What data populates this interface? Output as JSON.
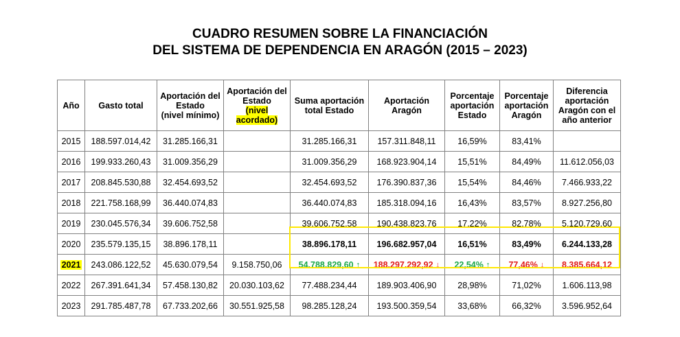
{
  "title": {
    "line1": "CUADRO RESUMEN SOBRE LA FINANCIACIÓN",
    "line2": "DEL SISTEMA DE DEPENDENCIA EN ARAGÓN (2015 – 2023)"
  },
  "headers": {
    "anio": "Año",
    "gasto": "Gasto total",
    "aport_min_1": "Aportación del Estado",
    "aport_min_2": "(nivel mínimo)",
    "aport_acord_1": "Aportación del Estado",
    "aport_acord_2": "(nivel acordado)",
    "suma": "Suma aportación total Estado",
    "aragon": "Aportación Aragón",
    "pct_estado": "Porcentaje aportación Estado",
    "pct_aragon": "Porcentaje aportación Aragón",
    "diferencia": "Diferencia aportación Aragón con el año anterior"
  },
  "rows": [
    {
      "year": "2015",
      "gasto": "188.597.014,42",
      "minimo": "31.285.166,31",
      "acordado": "",
      "suma": "31.285.166,31",
      "aragon": "157.311.848,11",
      "pct_estado": "16,59%",
      "pct_aragon": "83,41%",
      "diferencia": ""
    },
    {
      "year": "2016",
      "gasto": "199.933.260,43",
      "minimo": "31.009.356,29",
      "acordado": "",
      "suma": "31.009.356,29",
      "aragon": "168.923.904,14",
      "pct_estado": "15,51%",
      "pct_aragon": "84,49%",
      "diferencia": "11.612.056,03"
    },
    {
      "year": "2017",
      "gasto": "208.845.530,88",
      "minimo": "32.454.693,52",
      "acordado": "",
      "suma": "32.454.693,52",
      "aragon": "176.390.837,36",
      "pct_estado": "15,54%",
      "pct_aragon": "84,46%",
      "diferencia": "7.466.933,22"
    },
    {
      "year": "2018",
      "gasto": "221.758.168,99",
      "minimo": "36.440.074,83",
      "acordado": "",
      "suma": "36.440.074,83",
      "aragon": "185.318.094,16",
      "pct_estado": "16,43%",
      "pct_aragon": "83,57%",
      "diferencia": "8.927.256,80"
    },
    {
      "year": "2019",
      "gasto": "230.045.576,34",
      "minimo": "39.606.752,58",
      "acordado": "",
      "suma": "39.606.752,58",
      "aragon": "190.438.823,76",
      "pct_estado": "17,22%",
      "pct_aragon": "82,78%",
      "diferencia": "5.120.729,60"
    },
    {
      "year": "2020",
      "gasto": "235.579.135,15",
      "minimo": "38.896.178,11",
      "acordado": "",
      "suma": "38.896.178,11",
      "aragon": "196.682.957,04",
      "pct_estado": "16,51%",
      "pct_aragon": "83,49%",
      "diferencia": "6.244.133,28"
    },
    {
      "year": "2021",
      "gasto": "243.086.122,52",
      "minimo": "45.630.079,54",
      "acordado": "9.158.750,06",
      "suma": "54.788.829,60 ↑",
      "aragon": "188.297.292,92 ↓",
      "pct_estado": "22,54% ↑",
      "pct_aragon": "77,46% ↓",
      "diferencia": "8.385.664,12"
    },
    {
      "year": "2022",
      "gasto": "267.391.641,34",
      "minimo": "57.458.130,82",
      "acordado": "20.030.103,62",
      "suma": "77.488.234,44",
      "aragon": "189.903.406,90",
      "pct_estado": "28,98%",
      "pct_aragon": "71,02%",
      "diferencia": "1.606.113,98"
    },
    {
      "year": "2023",
      "gasto": "291.785.487,78",
      "minimo": "67.733.202,66",
      "acordado": "30.551.925,58",
      "suma": "98.285.128,24",
      "aragon": "193.500.359,54",
      "pct_estado": "33,68%",
      "pct_aragon": "66,32%",
      "diferencia": "3.596.952,64"
    }
  ],
  "colors": {
    "highlight_yellow": "#ffff00",
    "box_yellow": "#ffe800",
    "increase_green": "#1aa64a",
    "decrease_red": "#e01b1b"
  }
}
